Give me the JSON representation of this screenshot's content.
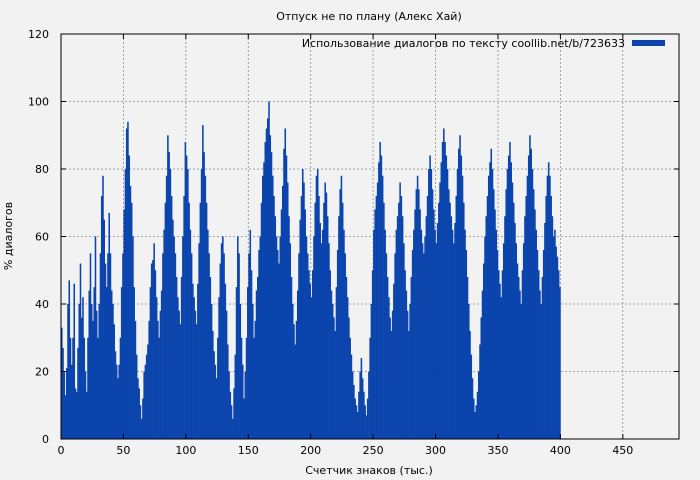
{
  "chart_data": {
    "type": "bar",
    "title": "Отпуск не по плану (Алекс Хай)",
    "xlabel": "Счетчик знаков (тыс.)",
    "ylabel": "% диалогов",
    "xlim": [
      0,
      495
    ],
    "ylim": [
      0,
      120
    ],
    "xticks": [
      0,
      50,
      100,
      150,
      200,
      250,
      300,
      350,
      400,
      450
    ],
    "yticks": [
      0,
      20,
      40,
      60,
      80,
      100,
      120
    ],
    "grid": true,
    "legend_position": "top-right",
    "series": [
      {
        "name": "Использование диалогов по тексту coollib.net/b/723633",
        "color": "#0b44ad",
        "bin_width": 1,
        "x_start": 0,
        "values": [
          33,
          27,
          20,
          13,
          21,
          40,
          47,
          30,
          22,
          30,
          46,
          15,
          14,
          27,
          40,
          52,
          36,
          42,
          30,
          20,
          14,
          30,
          44,
          55,
          40,
          35,
          45,
          60,
          38,
          30,
          40,
          55,
          72,
          78,
          65,
          52,
          45,
          55,
          67,
          55,
          44,
          40,
          34,
          26,
          22,
          18,
          22,
          30,
          45,
          55,
          68,
          80,
          92,
          94,
          84,
          75,
          70,
          60,
          45,
          35,
          25,
          18,
          15,
          10,
          6,
          12,
          20,
          22,
          25,
          28,
          35,
          45,
          52,
          53,
          58,
          50,
          42,
          35,
          30,
          38,
          44,
          55,
          62,
          70,
          78,
          90,
          85,
          80,
          72,
          65,
          60,
          55,
          48,
          42,
          38,
          34,
          48,
          60,
          72,
          88,
          84,
          80,
          70,
          62,
          55,
          46,
          42,
          38,
          34,
          46,
          58,
          70,
          80,
          93,
          85,
          78,
          70,
          62,
          55,
          48,
          40,
          32,
          26,
          22,
          18,
          30,
          42,
          52,
          58,
          60,
          55,
          46,
          38,
          28,
          20,
          14,
          10,
          6,
          15,
          25,
          45,
          60,
          55,
          40,
          30,
          22,
          12,
          20,
          30,
          45,
          55,
          62,
          50,
          40,
          30,
          35,
          44,
          48,
          56,
          60,
          70,
          78,
          82,
          88,
          92,
          95,
          100,
          90,
          85,
          78,
          72,
          66,
          60,
          56,
          52,
          60,
          68,
          75,
          86,
          92,
          84,
          76,
          66,
          58,
          48,
          40,
          34,
          28,
          35,
          44,
          55,
          65,
          72,
          80,
          76,
          68,
          60,
          55,
          50,
          46,
          42,
          50,
          60,
          70,
          78,
          80,
          72,
          64,
          58,
          62,
          70,
          76,
          73,
          66,
          58,
          50,
          44,
          40,
          36,
          32,
          45,
          56,
          66,
          74,
          78,
          70,
          62,
          55,
          48,
          42,
          36,
          30,
          25,
          20,
          16,
          12,
          10,
          8,
          14,
          20,
          24,
          18,
          14,
          10,
          7,
          12,
          20,
          30,
          40,
          50,
          62,
          68,
          72,
          76,
          82,
          88,
          84,
          78,
          70,
          62,
          55,
          48,
          42,
          36,
          32,
          38,
          46,
          55,
          62,
          66,
          70,
          76,
          72,
          66,
          58,
          50,
          44,
          38,
          32,
          40,
          48,
          56,
          62,
          68,
          74,
          78,
          74,
          68,
          62,
          58,
          55,
          60,
          66,
          72,
          80,
          84,
          80,
          74,
          68,
          62,
          58,
          64,
          70,
          76,
          82,
          88,
          92,
          88,
          84,
          80,
          74,
          70,
          66,
          62,
          58,
          64,
          72,
          80,
          86,
          90,
          84,
          78,
          70,
          62,
          56,
          48,
          40,
          32,
          25,
          18,
          12,
          8,
          10,
          14,
          20,
          28,
          36,
          44,
          52,
          60,
          66,
          72,
          78,
          82,
          86,
          80,
          74,
          68,
          62,
          56,
          50,
          46,
          42,
          50,
          58,
          66,
          74,
          80,
          84,
          88,
          82,
          76,
          70,
          64,
          58,
          52,
          48,
          44,
          40,
          50,
          58,
          66,
          72,
          78,
          84,
          90,
          86,
          80,
          74,
          68,
          62,
          56,
          50,
          44,
          40,
          48,
          56,
          64,
          72,
          78,
          82,
          78,
          72,
          66,
          60,
          62,
          57,
          54,
          50,
          45
        ]
      }
    ]
  }
}
